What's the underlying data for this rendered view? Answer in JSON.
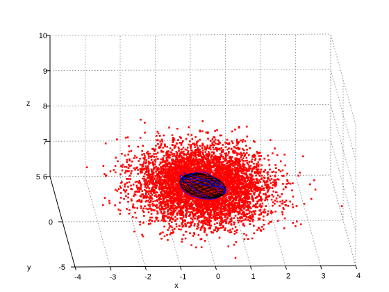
{
  "chart_data": {
    "type": "scatter",
    "projection": "3d",
    "title": "",
    "xlabel": "x",
    "ylabel": "y",
    "zlabel": "z",
    "xlim": [
      -4,
      4
    ],
    "ylim": [
      -5,
      5
    ],
    "zlim": [
      6,
      10
    ],
    "xticks": [
      "-4",
      "-3",
      "-2",
      "-1",
      "0",
      "1",
      "2",
      "3",
      "4"
    ],
    "yticks": [
      "-5",
      "0",
      "5"
    ],
    "zticks": [
      "6",
      "7",
      "8",
      "9",
      "10"
    ],
    "grid": true,
    "point_cloud": {
      "color": "#ff0000",
      "marker": "square",
      "approx_count": 6000,
      "center": [
        0,
        0,
        7
      ],
      "std": [
        0.9,
        1.6,
        0.35
      ]
    },
    "ellipsoid": {
      "wire_color": "#000000",
      "center": [
        0,
        0,
        7
      ],
      "radii": [
        0.6,
        0.7,
        0.35
      ]
    },
    "curves": {
      "color": "#0000ff",
      "count": 6
    }
  }
}
